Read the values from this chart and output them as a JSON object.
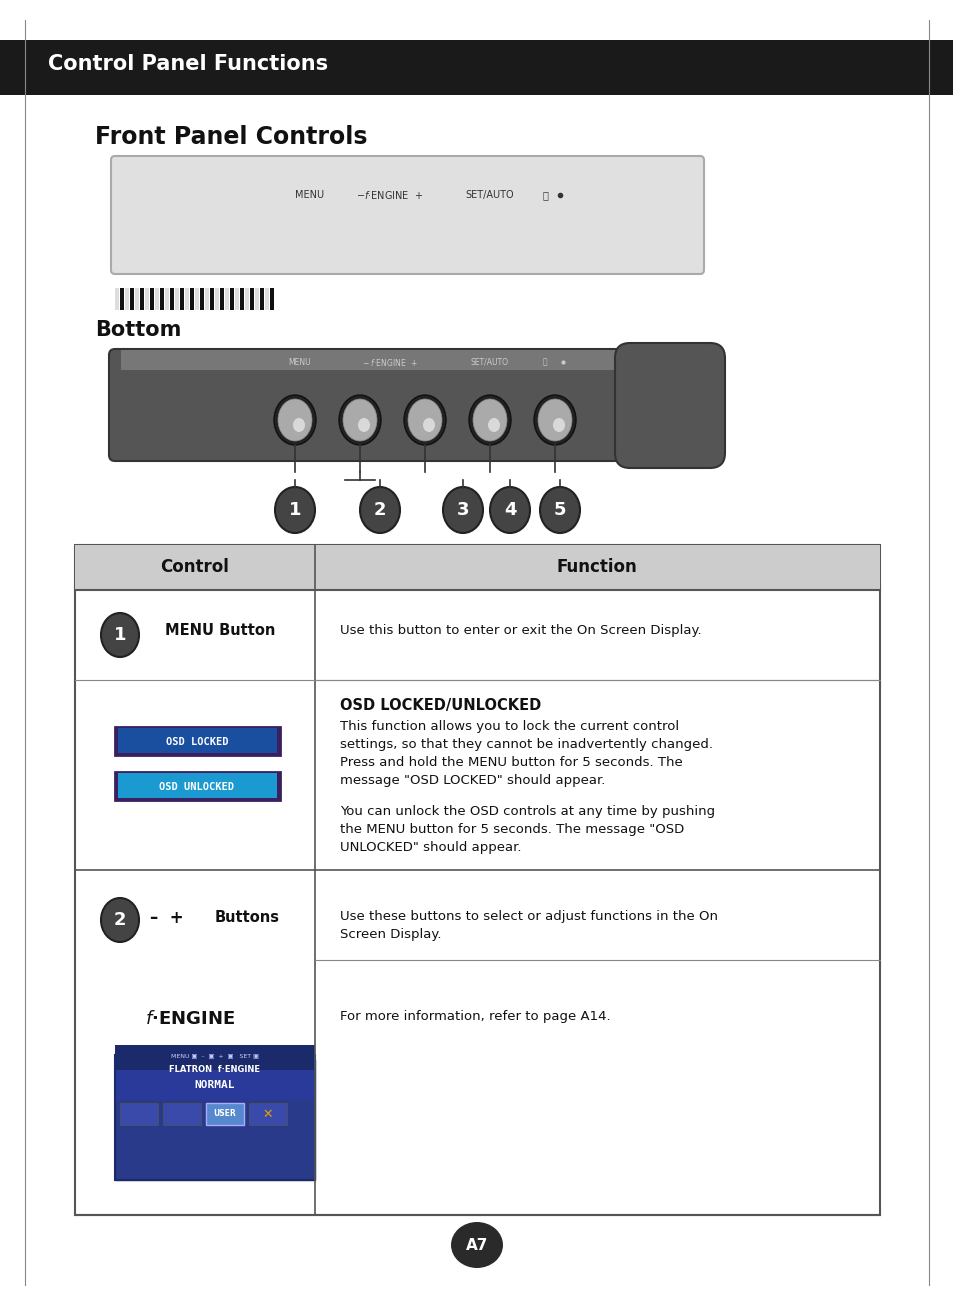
{
  "page_bg": "#ffffff",
  "header_bg": "#1a1a1a",
  "header_text": "Control Panel Functions",
  "header_text_color": "#ffffff",
  "section_title": "Front Panel Controls",
  "bottom_label": "Bottom",
  "table_header_bg": "#d0d0d0",
  "table_border": "#555555",
  "col1_header": "Control",
  "col2_header": "Function",
  "osd_locked_bg": "#1a4fa0",
  "osd_locked_border": "#3a2060",
  "osd_locked_text": "OSD LOCKED",
  "osd_unlocked_bg": "#1a9ad0",
  "osd_unlocked_border": "#3a2060",
  "osd_unlocked_text": "OSD UNLOCKED",
  "page_num": "A7",
  "page_num_bg": "#2a2a2a",
  "page_num_color": "#ffffff"
}
